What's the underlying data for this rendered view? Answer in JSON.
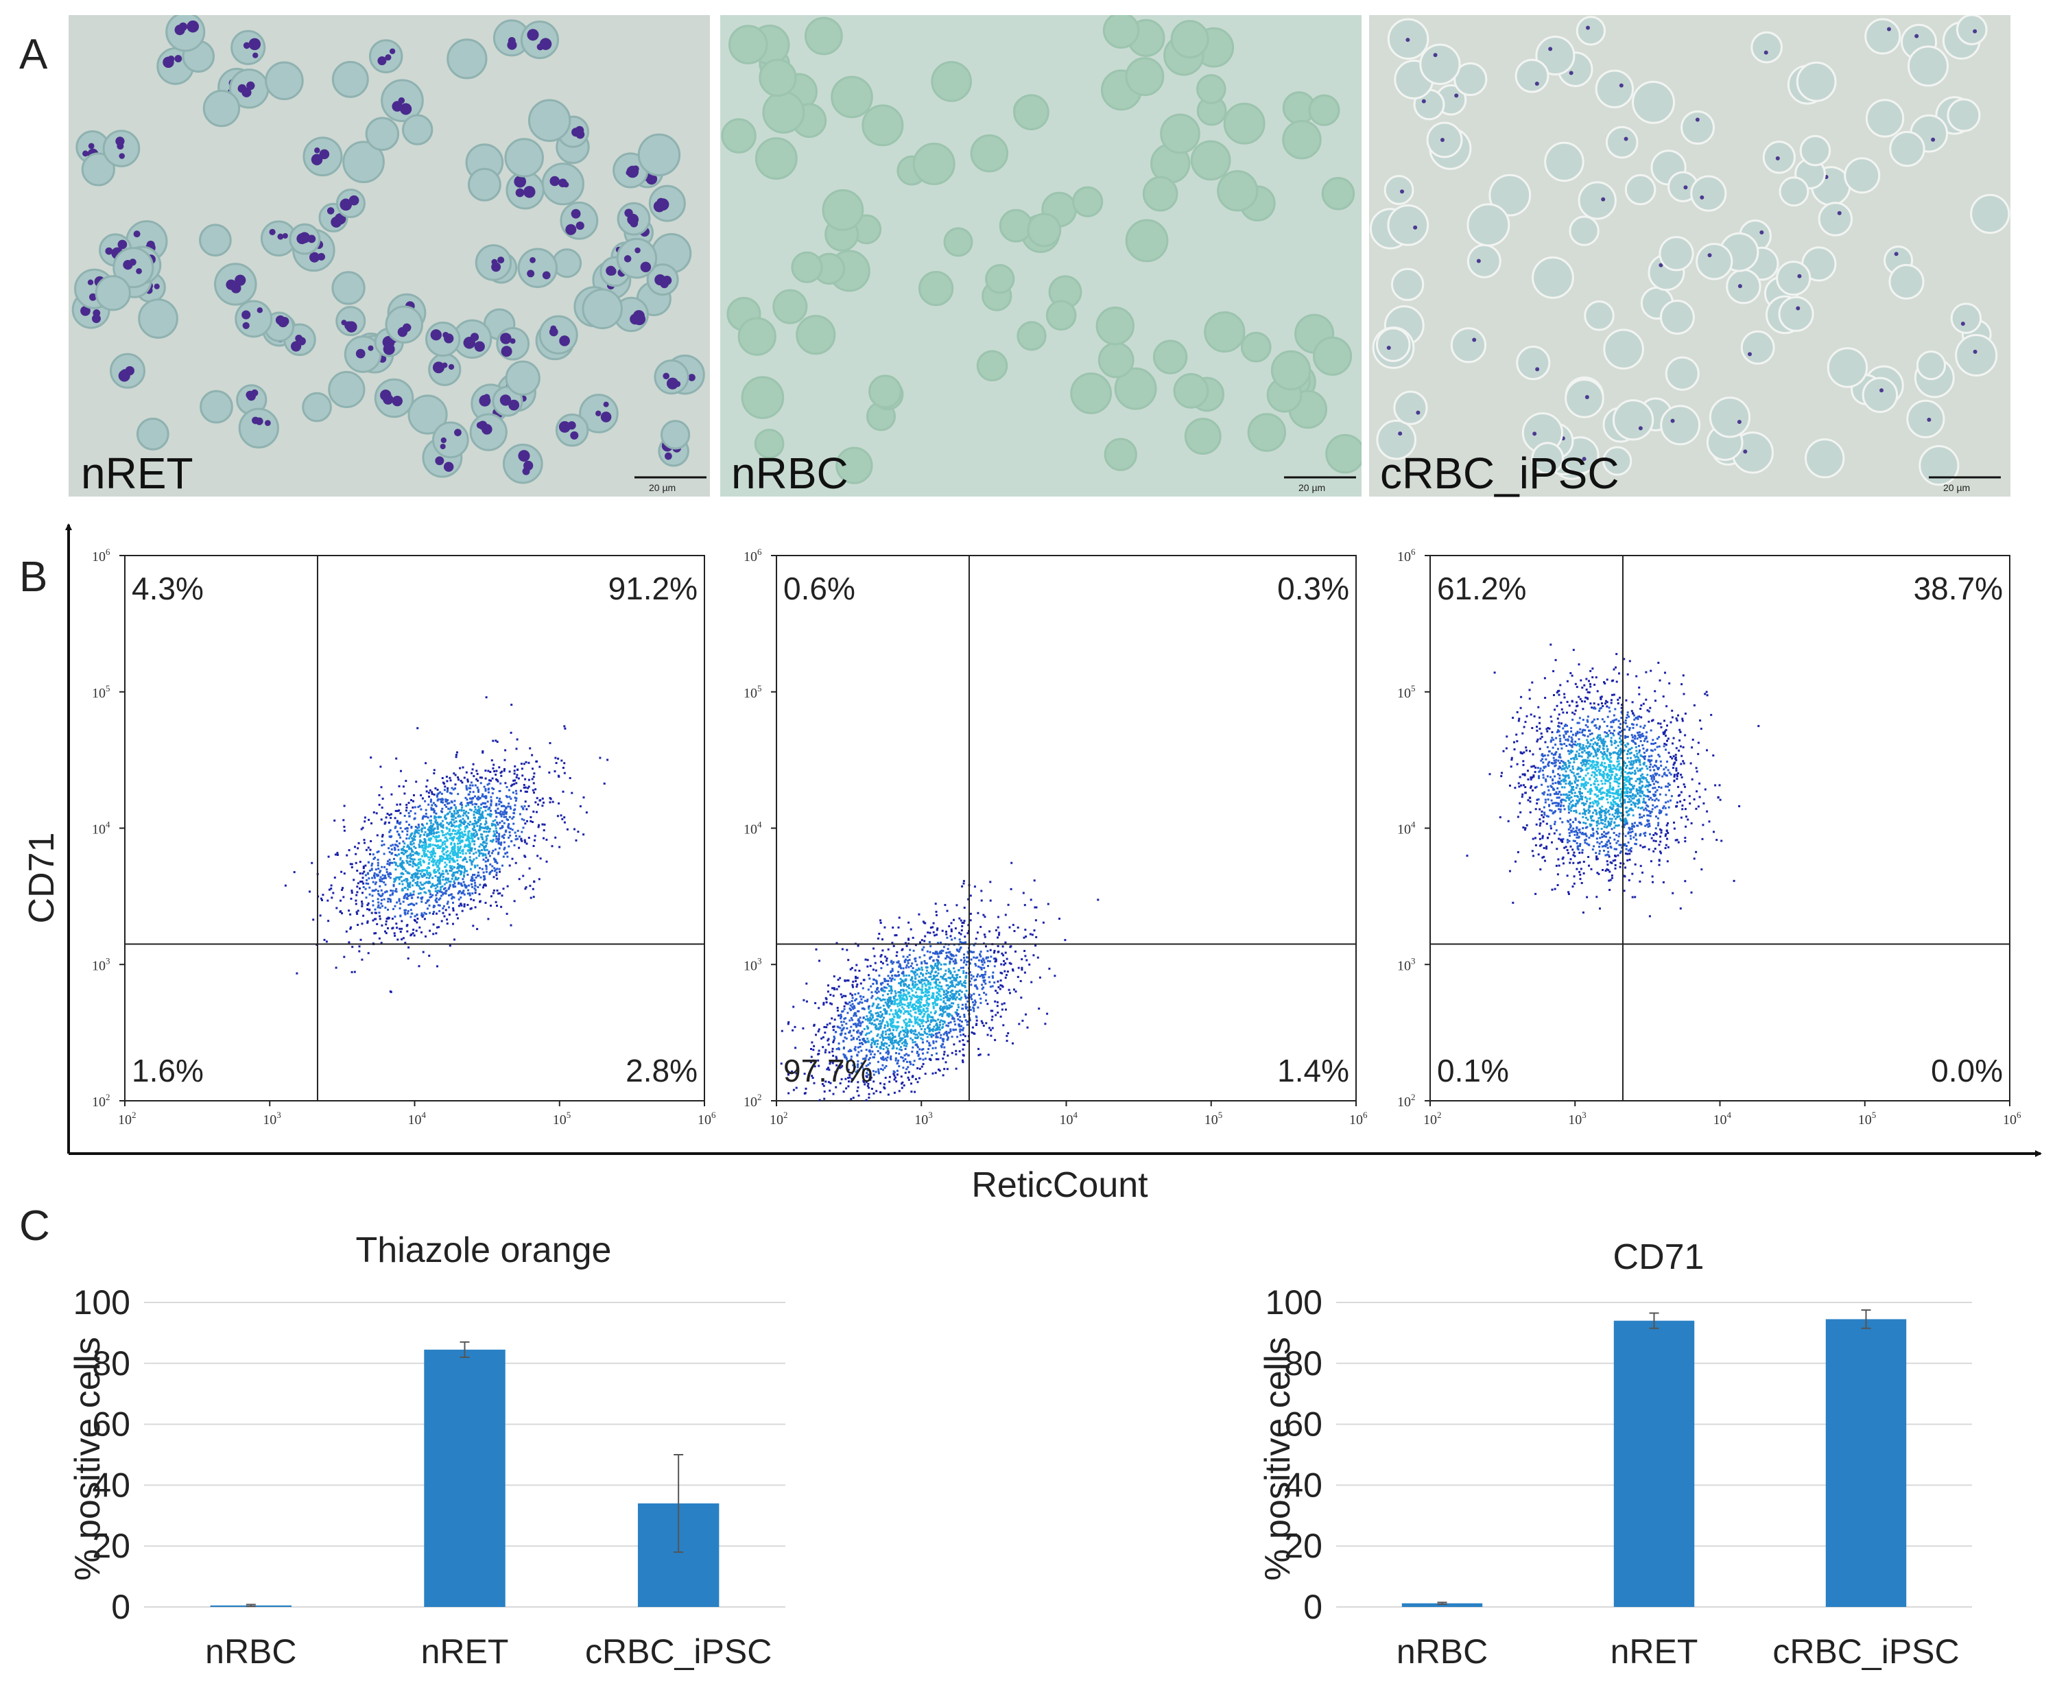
{
  "panel_letters": {
    "a": "A",
    "b": "B",
    "c": "C"
  },
  "micrographs": [
    {
      "label": "nRET",
      "scale_bar": "20 µm",
      "stain": "dense-purple-nuclei"
    },
    {
      "label": "nRBC",
      "scale_bar": "20 µm",
      "stain": "pale-green"
    },
    {
      "label": "cRBC_iPSC",
      "scale_bar": "20 µm",
      "stain": "sparse-dots"
    }
  ],
  "flow": {
    "x_axis_title": "ReticCount",
    "y_axis_title": "CD71",
    "tick_base": "10",
    "tick_exponents": [
      "2",
      "3",
      "4",
      "5",
      "6"
    ],
    "colors": {
      "dark": "#1a22a8",
      "mid": "#2a5cd0",
      "light": "#1e9bd8",
      "core": "#23c0e8"
    },
    "plots": [
      {
        "name": "nRET",
        "quadrants": {
          "ul": "4.3%",
          "ur": "91.2%",
          "ll": "1.6%",
          "lr": "2.8%"
        },
        "gate_x_log": 3.33,
        "gate_y_log": 3.15,
        "center_log": [
          4.2,
          3.85
        ]
      },
      {
        "name": "nRBC",
        "quadrants": {
          "ul": "0.6%",
          "ur": "0.3%",
          "ll": "97.7%",
          "lr": "1.4%"
        },
        "gate_x_log": 3.33,
        "gate_y_log": 3.15,
        "center_log": [
          2.95,
          2.7
        ]
      },
      {
        "name": "cRBC_iPSC",
        "quadrants": {
          "ul": "61.2%",
          "ur": "38.7%",
          "ll": "0.1%",
          "lr": "0.0%"
        },
        "gate_x_log": 3.33,
        "gate_y_log": 3.15,
        "center_log": [
          3.2,
          4.6
        ]
      }
    ]
  },
  "chart_data": [
    {
      "type": "bar",
      "title": "Thiazole orange",
      "categories": [
        "nRBC",
        "nRET",
        "cRBC_iPSC"
      ],
      "values": [
        0.5,
        84.5,
        34
      ],
      "errors": [
        0.3,
        2.5,
        16
      ],
      "ylabel": "% positive cells",
      "ylim": [
        0,
        100
      ],
      "yticks": [
        "0",
        "20",
        "40",
        "60",
        "80",
        "100"
      ],
      "grid": true,
      "bar_color": "#2980c4"
    },
    {
      "type": "bar",
      "title": "CD71",
      "categories": [
        "nRBC",
        "nRET",
        "cRBC_iPSC"
      ],
      "values": [
        1.2,
        94,
        94.5
      ],
      "errors": [
        0.3,
        2.5,
        3
      ],
      "ylabel": "% positive cells",
      "ylim": [
        0,
        100
      ],
      "yticks": [
        "0",
        "20",
        "40",
        "60",
        "80",
        "100"
      ],
      "grid": true,
      "bar_color": "#2980c4"
    }
  ]
}
